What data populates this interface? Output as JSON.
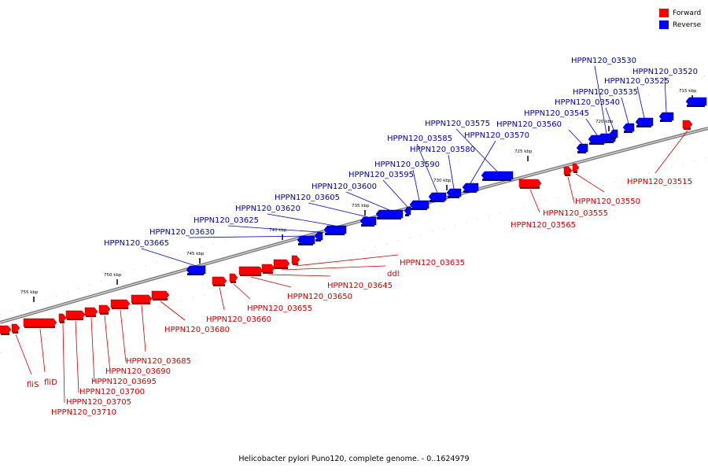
{
  "legend": {
    "forward_label": "Forward",
    "reverse_label": "Reverse",
    "forward_color": "#ff0000",
    "reverse_color": "#0000ff"
  },
  "caption": "Helicobacter pylori Puno120, complete genome. - 0..1624979",
  "colors": {
    "forward_label_color": "#cc0000",
    "reverse_label_color": "#0000aa",
    "backbone": "#999999"
  },
  "ticks": [
    "715 kbp",
    "720 kbp",
    "725 kbp",
    "730 kbp",
    "735 kbp",
    "740 kbp",
    "745 kbp",
    "750 kbp",
    "755 kbp"
  ],
  "reverse_genes": [
    "HPPN120_03530",
    "HPPN120_03520",
    "HPPN120_03525",
    "HPPN120_03535",
    "HPPN120_03540",
    "HPPN120_03545",
    "HPPN120_03560",
    "HPPN120_03575",
    "HPPN120_03570",
    "HPPN120_03585",
    "HPPN120_03580",
    "HPPN120_03590",
    "HPPN120_03595",
    "HPPN120_03600",
    "HPPN120_03605",
    "HPPN120_03620",
    "HPPN120_03625",
    "HPPN120_03630",
    "HPPN120_03665"
  ],
  "forward_genes": [
    "HPPN120_03515",
    "HPPN120_03550",
    "HPPN120_03555",
    "HPPN120_03565",
    "HPPN120_03635",
    "ddl",
    "HPPN120_03645",
    "HPPN120_03650",
    "HPPN120_03655",
    "HPPN120_03660",
    "HPPN120_03680",
    "HPPN120_03685",
    "HPPN120_03690",
    "HPPN120_03695",
    "HPPN120_03700",
    "HPPN120_03705",
    "HPPN120_03710",
    "fliS",
    "fliD"
  ]
}
